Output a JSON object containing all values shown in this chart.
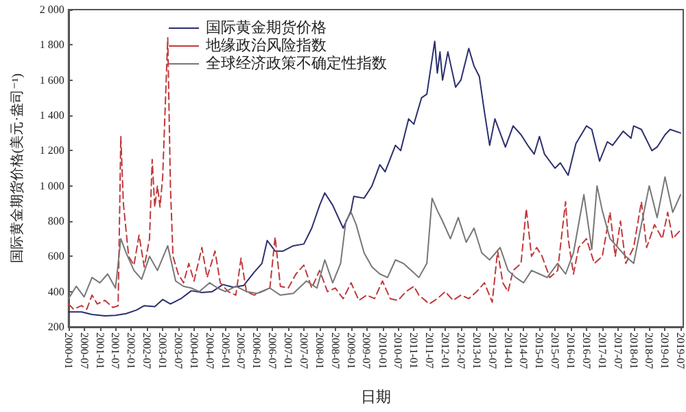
{
  "chart_data": {
    "type": "line",
    "xlabel": "日期",
    "ylabel": "国际黄金期货价格(美元·盎司⁻¹)",
    "xlim": [
      "2000-01",
      "2019-08"
    ],
    "xticks": [
      "2000-01",
      "2000-07",
      "2001-01",
      "2001-07",
      "2002-01",
      "2002-07",
      "2003-01",
      "2003-07",
      "2004-01",
      "2004-07",
      "2005-01",
      "2005-07",
      "2006-01",
      "2006-07",
      "2007-01",
      "2007-07",
      "2008-01",
      "2008-07",
      "2009-01",
      "2009-07",
      "2010-01",
      "2010-07",
      "2011-01",
      "2011-07",
      "2012-01",
      "2012-07",
      "2013-01",
      "2013-07",
      "2014-01",
      "2014-07",
      "2015-01",
      "2015-07",
      "2016-01",
      "2016-07",
      "2017-01",
      "2017-07",
      "2018-01",
      "2018-07",
      "2019-01",
      "2019-07"
    ],
    "ylim": [
      200,
      2000
    ],
    "yticks": [
      200,
      400,
      600,
      800,
      {
        "value": 1000,
        "label": "1 000"
      },
      {
        "value": 1200,
        "label": "1 200"
      },
      {
        "value": 1400,
        "label": "1 400"
      },
      {
        "value": 1600,
        "label": "1 600"
      },
      {
        "value": 1800,
        "label": "1 800"
      },
      {
        "value": 2000,
        "label": "2 000"
      }
    ],
    "legend": "top",
    "grid": false,
    "marker": "none",
    "series": [
      {
        "name": "国际黄金期货价格",
        "color": "#2b2f6e",
        "line_style": "solid",
        "x": [
          "2000-01",
          "2000-06",
          "2000-10",
          "2001-03",
          "2001-07",
          "2001-11",
          "2002-03",
          "2002-06",
          "2002-10",
          "2003-01",
          "2003-04",
          "2003-08",
          "2003-12",
          "2004-04",
          "2004-08",
          "2004-12",
          "2005-04",
          "2005-08",
          "2005-12",
          "2006-03",
          "2006-05",
          "2006-08",
          "2006-11",
          "2007-03",
          "2007-07",
          "2007-10",
          "2008-01",
          "2008-03",
          "2008-06",
          "2008-10",
          "2009-01",
          "2009-02",
          "2009-06",
          "2009-09",
          "2009-12",
          "2010-02",
          "2010-06",
          "2010-08",
          "2010-11",
          "2011-01",
          "2011-04",
          "2011-06",
          "2011-09",
          "2011-10",
          "2011-11",
          "2011-12",
          "2012-02",
          "2012-05",
          "2012-07",
          "2012-10",
          "2012-12",
          "2013-02",
          "2013-04",
          "2013-06",
          "2013-08",
          "2013-12",
          "2014-03",
          "2014-06",
          "2014-09",
          "2014-11",
          "2015-01",
          "2015-03",
          "2015-07",
          "2015-09",
          "2015-12",
          "2016-03",
          "2016-07",
          "2016-09",
          "2016-12",
          "2017-03",
          "2017-05",
          "2017-09",
          "2017-12",
          "2018-01",
          "2018-04",
          "2018-08",
          "2018-10",
          "2019-01",
          "2019-03",
          "2019-07"
        ],
        "values": [
          285,
          285,
          270,
          262,
          265,
          275,
          295,
          320,
          315,
          355,
          330,
          360,
          405,
          395,
          400,
          440,
          425,
          435,
          510,
          560,
          690,
          630,
          630,
          660,
          670,
          760,
          890,
          960,
          890,
          760,
          860,
          940,
          930,
          1000,
          1120,
          1080,
          1230,
          1200,
          1380,
          1350,
          1500,
          1520,
          1820,
          1640,
          1760,
          1600,
          1760,
          1560,
          1600,
          1780,
          1680,
          1620,
          1420,
          1230,
          1380,
          1220,
          1340,
          1290,
          1220,
          1180,
          1280,
          1180,
          1100,
          1130,
          1060,
          1240,
          1340,
          1320,
          1140,
          1250,
          1230,
          1310,
          1270,
          1340,
          1320,
          1200,
          1220,
          1290,
          1320,
          1300
        ]
      },
      {
        "name": "地缘政治风险指数",
        "color": "#c0393b",
        "line_style": "dashed",
        "x": [
          "2000-01",
          "2000-03",
          "2000-06",
          "2000-08",
          "2000-10",
          "2000-12",
          "2001-03",
          "2001-06",
          "2001-08",
          "2001-09",
          "2001-10",
          "2001-12",
          "2002-02",
          "2002-04",
          "2002-06",
          "2002-08",
          "2002-09",
          "2002-10",
          "2002-11",
          "2002-12",
          "2003-01",
          "2003-03",
          "2003-04",
          "2003-05",
          "2003-07",
          "2003-09",
          "2003-11",
          "2004-01",
          "2004-04",
          "2004-06",
          "2004-09",
          "2004-11",
          "2005-02",
          "2005-05",
          "2005-07",
          "2005-09",
          "2005-12",
          "2006-03",
          "2006-06",
          "2006-08",
          "2006-10",
          "2007-01",
          "2007-04",
          "2007-07",
          "2007-10",
          "2008-01",
          "2008-04",
          "2008-07",
          "2008-10",
          "2009-01",
          "2009-04",
          "2009-07",
          "2009-10",
          "2010-01",
          "2010-04",
          "2010-07",
          "2010-10",
          "2011-01",
          "2011-03",
          "2011-07",
          "2011-10",
          "2012-01",
          "2012-04",
          "2012-07",
          "2012-10",
          "2013-01",
          "2013-04",
          "2013-07",
          "2013-09",
          "2013-11",
          "2014-01",
          "2014-03",
          "2014-06",
          "2014-08",
          "2014-10",
          "2014-12",
          "2015-02",
          "2015-05",
          "2015-08",
          "2015-11",
          "2015-12",
          "2016-02",
          "2016-04",
          "2016-07",
          "2016-10",
          "2017-01",
          "2017-04",
          "2017-06",
          "2017-08",
          "2017-10",
          "2018-01",
          "2018-04",
          "2018-06",
          "2018-09",
          "2018-12",
          "2019-02",
          "2019-04",
          "2019-07"
        ],
        "values": [
          330,
          300,
          320,
          300,
          380,
          330,
          350,
          310,
          320,
          1280,
          900,
          600,
          550,
          720,
          540,
          700,
          1150,
          880,
          1000,
          880,
          1050,
          1840,
          1000,
          600,
          500,
          450,
          560,
          460,
          650,
          480,
          630,
          450,
          400,
          380,
          590,
          400,
          380,
          400,
          420,
          710,
          430,
          420,
          500,
          550,
          420,
          520,
          400,
          420,
          360,
          450,
          350,
          380,
          360,
          460,
          360,
          350,
          400,
          430,
          380,
          330,
          360,
          400,
          350,
          380,
          360,
          400,
          450,
          340,
          630,
          450,
          400,
          520,
          560,
          870,
          600,
          650,
          600,
          480,
          520,
          910,
          700,
          500,
          650,
          700,
          560,
          600,
          850,
          600,
          800,
          560,
          650,
          910,
          650,
          780,
          700,
          850,
          700,
          750
        ]
      },
      {
        "name": "全球经济政策不确定性指数",
        "color": "#777777",
        "line_style": "solid",
        "x": [
          "2000-01",
          "2000-04",
          "2000-07",
          "2000-10",
          "2001-01",
          "2001-04",
          "2001-07",
          "2001-09",
          "2001-11",
          "2002-02",
          "2002-05",
          "2002-08",
          "2002-11",
          "2003-03",
          "2003-06",
          "2003-09",
          "2003-12",
          "2004-03",
          "2004-07",
          "2004-10",
          "2005-01",
          "2005-05",
          "2005-09",
          "2006-01",
          "2006-06",
          "2006-10",
          "2007-03",
          "2007-08",
          "2007-12",
          "2008-03",
          "2008-06",
          "2008-09",
          "2008-11",
          "2009-01",
          "2009-03",
          "2009-06",
          "2009-09",
          "2009-12",
          "2010-03",
          "2010-06",
          "2010-09",
          "2010-12",
          "2011-03",
          "2011-06",
          "2011-08",
          "2011-10",
          "2011-12",
          "2012-03",
          "2012-06",
          "2012-09",
          "2012-12",
          "2013-03",
          "2013-06",
          "2013-10",
          "2014-01",
          "2014-04",
          "2014-07",
          "2014-10",
          "2015-01",
          "2015-04",
          "2015-08",
          "2015-11",
          "2016-02",
          "2016-06",
          "2016-09",
          "2016-11",
          "2017-01",
          "2017-04",
          "2017-07",
          "2017-10",
          "2018-01",
          "2018-04",
          "2018-07",
          "2018-10",
          "2019-01",
          "2019-04",
          "2019-07"
        ],
        "values": [
          360,
          430,
          370,
          480,
          450,
          500,
          420,
          700,
          620,
          520,
          470,
          600,
          520,
          660,
          460,
          430,
          420,
          400,
          450,
          420,
          400,
          430,
          400,
          390,
          420,
          380,
          390,
          460,
          420,
          580,
          450,
          560,
          800,
          850,
          780,
          620,
          540,
          500,
          480,
          580,
          560,
          520,
          480,
          560,
          930,
          860,
          800,
          700,
          820,
          680,
          760,
          620,
          580,
          650,
          520,
          480,
          450,
          520,
          500,
          480,
          560,
          500,
          620,
          950,
          640,
          1000,
          860,
          700,
          650,
          600,
          560,
          780,
          1000,
          820,
          1050,
          850,
          950
        ]
      }
    ]
  }
}
